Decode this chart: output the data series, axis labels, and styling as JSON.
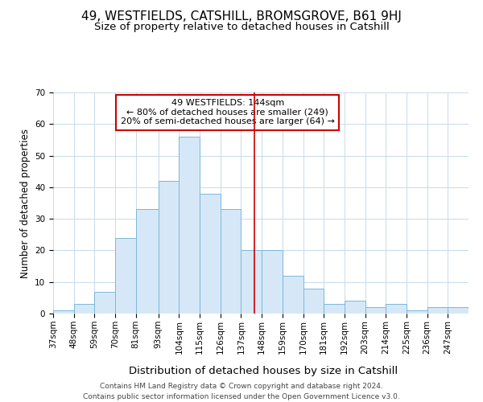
{
  "title": "49, WESTFIELDS, CATSHILL, BROMSGROVE, B61 9HJ",
  "subtitle": "Size of property relative to detached houses in Catshill",
  "xlabel": "Distribution of detached houses by size in Catshill",
  "ylabel": "Number of detached properties",
  "bin_edges": [
    37,
    48,
    59,
    70,
    81,
    93,
    104,
    115,
    126,
    137,
    148,
    159,
    170,
    181,
    192,
    203,
    214,
    225,
    236,
    247,
    258
  ],
  "bar_heights": [
    1,
    3,
    7,
    24,
    33,
    42,
    56,
    38,
    33,
    20,
    20,
    12,
    8,
    3,
    4,
    2,
    3,
    1,
    2,
    2
  ],
  "bar_color": "#d6e8f7",
  "bar_edgecolor": "#7ab8d9",
  "vline_x": 144,
  "vline_color": "#cc0000",
  "annotation_text": "49 WESTFIELDS: 144sqm\n← 80% of detached houses are smaller (249)\n20% of semi-detached houses are larger (64) →",
  "annotation_box_edgecolor": "#cc0000",
  "annotation_box_facecolor": "#ffffff",
  "xlim": [
    37,
    258
  ],
  "ylim": [
    0,
    70
  ],
  "yticks": [
    0,
    10,
    20,
    30,
    40,
    50,
    60,
    70
  ],
  "background_color": "#ffffff",
  "grid_color": "#c8daea",
  "footer_line1": "Contains HM Land Registry data © Crown copyright and database right 2024.",
  "footer_line2": "Contains public sector information licensed under the Open Government Licence v3.0.",
  "title_fontsize": 11,
  "subtitle_fontsize": 9.5,
  "xlabel_fontsize": 9.5,
  "ylabel_fontsize": 8.5,
  "tick_fontsize": 7.5,
  "annotation_fontsize": 8,
  "footer_fontsize": 6.5
}
